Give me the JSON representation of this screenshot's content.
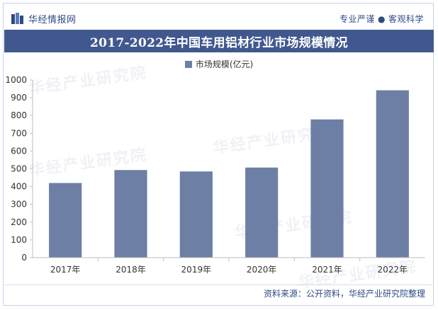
{
  "header": {
    "logo_text": "华经情报网",
    "slogan_left": "专业严谨",
    "slogan_dot": "●",
    "slogan_right": "客观科学"
  },
  "chart_data": {
    "type": "bar",
    "title": "2017-2022年中国车用铝材行业市场规模情况",
    "categories": [
      "2017年",
      "2018年",
      "2019年",
      "2020年",
      "2021年",
      "2022年"
    ],
    "series": [
      {
        "name": "市场规模(亿元)",
        "values": [
          420,
          493,
          485,
          507,
          778,
          942
        ]
      }
    ],
    "xlabel": "",
    "ylabel": "",
    "ylim": [
      0,
      1000
    ],
    "yticks": [
      0,
      100,
      200,
      300,
      400,
      500,
      600,
      700,
      800,
      900,
      1000
    ],
    "grid": false,
    "legend_position": "top-center",
    "bar_color": "#6d7fa5"
  },
  "watermark": "华经产业研究院",
  "source": "资料来源：公开资料，华经产业研究院整理"
}
